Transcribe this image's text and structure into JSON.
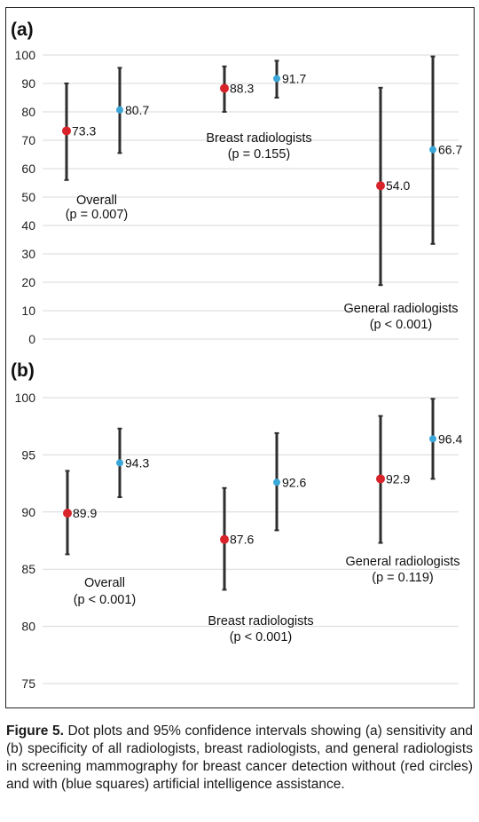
{
  "chart_data": [
    {
      "type": "scatter",
      "panel_label": "(a)",
      "ylim": [
        0,
        100
      ],
      "yticks": [
        "100",
        "90",
        "80",
        "70",
        "60",
        "50",
        "40",
        "30",
        "20",
        "10",
        "0"
      ],
      "groups": [
        {
          "label": "Overall",
          "pvalue": "(p = 0.007)"
        },
        {
          "label": "Breast radiologists",
          "pvalue": "(p = 0.155)"
        },
        {
          "label": "General radiologists",
          "pvalue": "(p < 0.001)"
        }
      ],
      "series": [
        {
          "color": "#d8232a",
          "values": [
            73.3,
            88.3,
            54.0
          ],
          "labels": [
            "73.3",
            "88.3",
            "54.0"
          ],
          "lower": [
            56,
            80,
            19
          ],
          "upper": [
            90,
            96,
            88.5
          ]
        },
        {
          "color": "#3ba7d8",
          "values": [
            80.7,
            91.7,
            66.7
          ],
          "labels": [
            "80.7",
            "91.7",
            "66.7"
          ],
          "lower": [
            65.5,
            85,
            33.5
          ],
          "upper": [
            95.5,
            98,
            99.5
          ]
        }
      ]
    },
    {
      "type": "scatter",
      "panel_label": "(b)",
      "ylim": [
        75,
        100
      ],
      "yticks": [
        "100",
        "95",
        "90",
        "85",
        "80",
        "75"
      ],
      "groups": [
        {
          "label": "Overall",
          "pvalue": "(p < 0.001)"
        },
        {
          "label": "Breast radiologists",
          "pvalue": "(p < 0.001)"
        },
        {
          "label": "General radiologists",
          "pvalue": "(p = 0.119)"
        }
      ],
      "series": [
        {
          "color": "#d8232a",
          "values": [
            89.9,
            87.6,
            92.9
          ],
          "labels": [
            "89.9",
            "87.6",
            "92.9"
          ],
          "lower": [
            86.3,
            83.2,
            87.3
          ],
          "upper": [
            93.6,
            92.1,
            98.4
          ]
        },
        {
          "color": "#3ba7d8",
          "values": [
            94.3,
            92.6,
            96.4
          ],
          "labels": [
            "94.3",
            "92.6",
            "96.4"
          ],
          "lower": [
            91.3,
            88.4,
            92.9
          ],
          "upper": [
            97.3,
            96.9,
            99.9
          ]
        }
      ]
    }
  ],
  "caption": {
    "bold": "Figure 5.",
    "text": " Dot plots and 95% confidence intervals showing (a) sensitivity and (b) specificity of all radiologists, breast radiologists, and general radiologists in screening mammography for breast cancer detection without (red circles) and with (blue squares) artificial intelligence assistance."
  }
}
